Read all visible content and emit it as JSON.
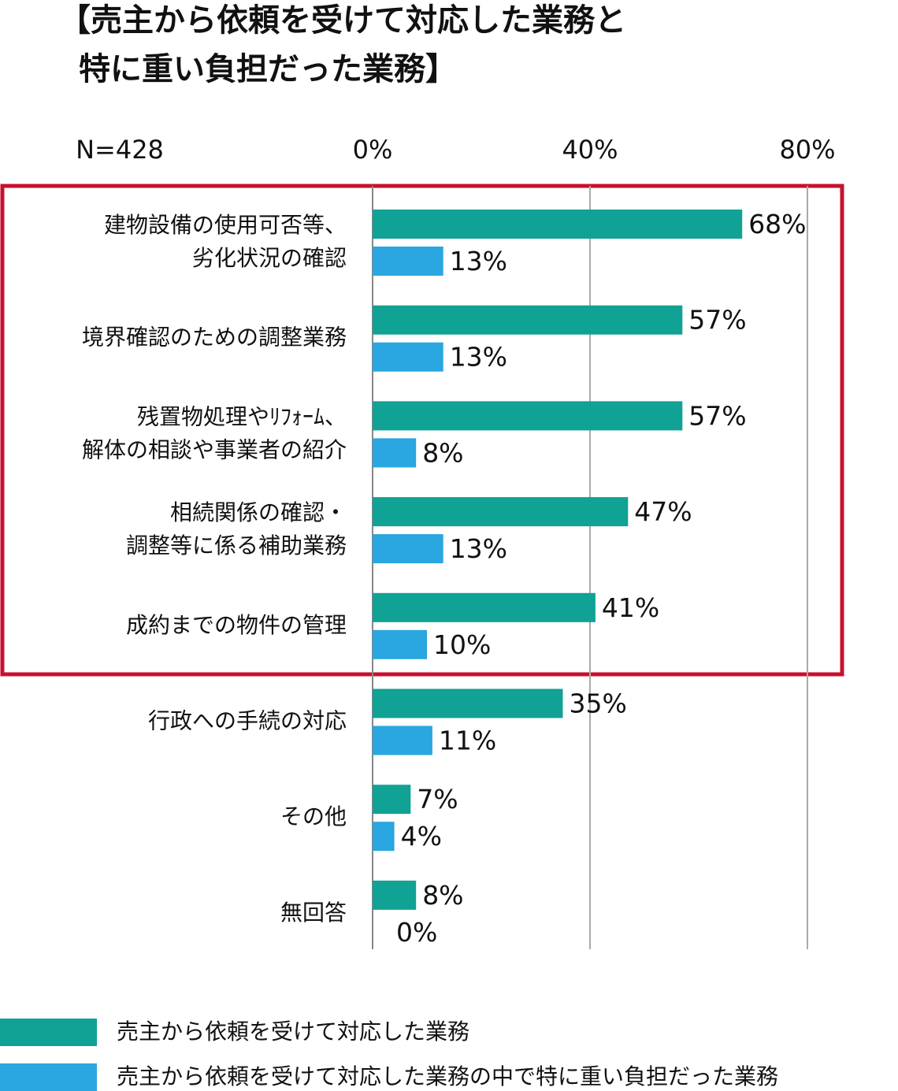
{
  "chart_data": {
    "type": "bar",
    "orientation": "horizontal",
    "title": [
      "【売主から依頼を受けて対応した業務と",
      "特に重い負担だった業務】"
    ],
    "annotation": "N=428",
    "categories": [
      [
        "建物設備の使用可否等、",
        "劣化状況の確認"
      ],
      [
        "境界確認のための調整業務"
      ],
      [
        "残置物処理やﾘﾌｫｰﾑ、",
        "解体の相談や事業者の紹介"
      ],
      [
        "相続関係の確認・",
        "調整等に係る補助業務"
      ],
      [
        "成約までの物件の管理"
      ],
      [
        "行政への手続の対応"
      ],
      [
        "その他"
      ],
      [
        "無回答"
      ]
    ],
    "series": [
      {
        "name": "売主から依頼を受けて対応した業務",
        "color": "#10a294",
        "values": [
          68,
          57,
          57,
          47,
          41,
          35,
          7,
          8
        ],
        "value_labels": [
          "68%",
          "57%",
          "57%",
          "47%",
          "41%",
          "35%",
          "7%",
          "8%"
        ]
      },
      {
        "name": "売主から依頼を受けて対応した業務の中で特に重い負担だった業務",
        "color": "#2aa6e0",
        "values": [
          13,
          13,
          8,
          13,
          10,
          11,
          4,
          0
        ],
        "value_labels": [
          "13%",
          "13%",
          "8%",
          "13%",
          "10%",
          "11%",
          "4%",
          "0%"
        ]
      }
    ],
    "xlim": [
      0,
      80
    ],
    "xticks": [
      {
        "value": 0,
        "label": "0%"
      },
      {
        "value": 40,
        "label": "40%"
      },
      {
        "value": 80,
        "label": "80%"
      }
    ],
    "grid": true
  }
}
